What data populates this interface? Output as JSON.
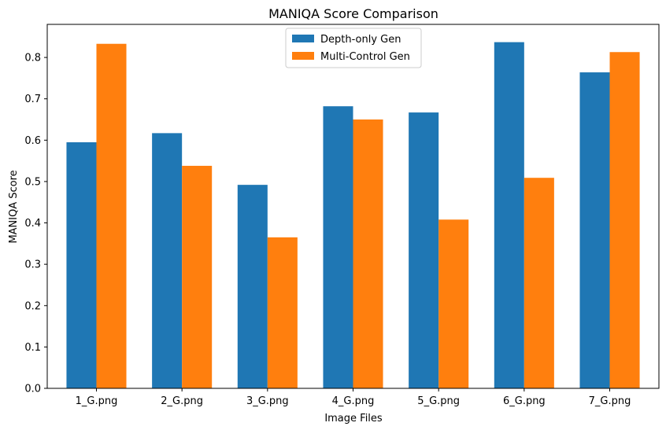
{
  "chart_data": {
    "type": "bar",
    "title": "MANIQA Score Comparison",
    "xlabel": "Image Files",
    "ylabel": "MANIQA Score",
    "categories": [
      "1_G.png",
      "2_G.png",
      "3_G.png",
      "4_G.png",
      "5_G.png",
      "6_G.png",
      "7_G.png"
    ],
    "series": [
      {
        "name": "Depth-only Gen",
        "color": "#1f77b4",
        "values": [
          0.595,
          0.617,
          0.492,
          0.682,
          0.667,
          0.837,
          0.764
        ]
      },
      {
        "name": "Multi-Control Gen",
        "color": "#ff7f0e",
        "values": [
          0.833,
          0.538,
          0.365,
          0.65,
          0.408,
          0.509,
          0.813
        ]
      }
    ],
    "ylim": [
      0,
      0.88
    ],
    "yticks": [
      "0.0",
      "0.1",
      "0.2",
      "0.3",
      "0.4",
      "0.5",
      "0.6",
      "0.7",
      "0.8"
    ],
    "grid": false,
    "legend": "upper center"
  }
}
